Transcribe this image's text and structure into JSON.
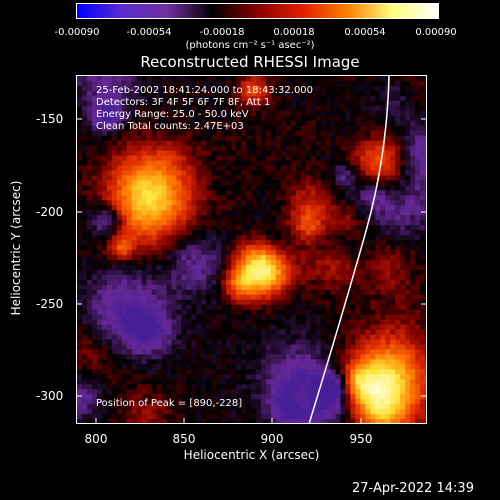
{
  "colorbar": {
    "ticks": [
      "-0.00090",
      "-0.00054",
      "-0.00018",
      "0.00018",
      "0.00054",
      "0.00090"
    ],
    "units": "(photons cm⁻² s⁻¹ asec⁻²)",
    "colors": [
      "#0000ff",
      "#5a2bd0",
      "#7030a0",
      "#000000",
      "#8a0000",
      "#e02000",
      "#ff8000",
      "#ffff80",
      "#ffffff"
    ]
  },
  "title": "Reconstructed RHESSI Image",
  "info": {
    "line1": "25-Feb-2002 18:41:24.000 to 18:43:32.000",
    "line2": "Detectors: 3F 4F 5F 6F 7F 8F, Att 1",
    "line3": "Energy Range: 25.0 - 50.0 keV",
    "line4": "Clean    Total counts: 2.47E+03"
  },
  "peak": "Position of Peak = [890,-228]",
  "axes": {
    "xlabel": "Heliocentric X (arcsec)",
    "ylabel": "Heliocentric Y (arcsec)",
    "xticks": [
      "800",
      "850",
      "900",
      "950"
    ],
    "yticks": [
      "-150",
      "-200",
      "-250",
      "-300"
    ]
  },
  "date": "27-Apr-2022 14:39"
}
